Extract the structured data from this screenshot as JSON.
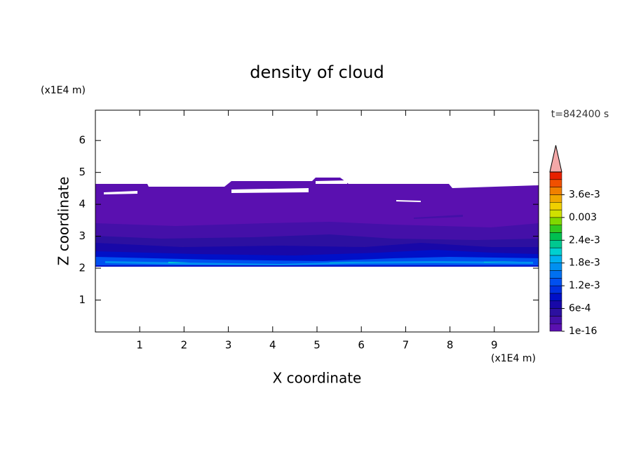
{
  "chart_data": {
    "type": "contour",
    "title": "density of cloud",
    "x_label": "X coordinate",
    "y_label": "Z coordinate",
    "x_unit": "(x1E4 m)",
    "y_unit": "(x1E4 m)",
    "time_label": "t=842400 s",
    "xlim": [
      0,
      10
    ],
    "xticks": [
      1,
      2,
      3,
      4,
      5,
      6,
      7,
      8,
      9
    ],
    "ylim": [
      0,
      6.95
    ],
    "yticks": [
      1,
      2,
      3,
      4,
      5,
      6
    ],
    "colorbar": {
      "clim": [
        1e-16,
        0.0042
      ],
      "extend": "max",
      "extend_color": "#f4a8a8",
      "colors": [
        "#5a10b0",
        "#4410a8",
        "#2c10a0",
        "#1808a8",
        "#0010c8",
        "#0030e0",
        "#0050f0",
        "#0070f0",
        "#0090f0",
        "#00b0f0",
        "#00d0d0",
        "#00c890",
        "#00c050",
        "#30c820",
        "#80d800",
        "#d0e000",
        "#f0d000",
        "#f0a800",
        "#f08000",
        "#f05000",
        "#e82000"
      ],
      "ticks": [
        {
          "value": 1e-16,
          "label": "1e-16"
        },
        {
          "value": 0.0006,
          "label": "6e-4"
        },
        {
          "value": 0.0012,
          "label": "1.2e-3"
        },
        {
          "value": 0.0018,
          "label": "1.8e-3"
        },
        {
          "value": 0.0024,
          "label": "2.4e-3"
        },
        0.003,
        {
          "value": 0.0036,
          "label": "3.6e-3"
        }
      ]
    }
  }
}
